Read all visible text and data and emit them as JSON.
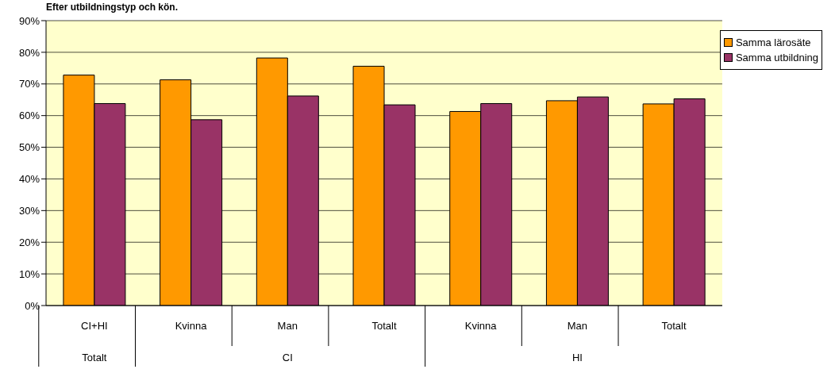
{
  "chart_data": {
    "type": "bar",
    "title": "Efter utbildningstyp och kön.",
    "categories": [
      "CI+HI",
      "Kvinna",
      "Man",
      "Totalt",
      "Kvinna",
      "Man",
      "Totalt"
    ],
    "series": [
      {
        "name": "Samma lärosäte",
        "color": "#ff9900",
        "values": [
          72.8,
          71.3,
          78.2,
          75.6,
          61.3,
          64.7,
          63.7
        ]
      },
      {
        "name": "Samma utbildning",
        "color": "#993366",
        "values": [
          63.8,
          58.7,
          66.2,
          63.4,
          63.8,
          65.9,
          65.3
        ]
      }
    ],
    "ylim": [
      0,
      90
    ],
    "yticks": [
      {
        "value": 0,
        "label": "0%"
      },
      {
        "value": 10,
        "label": "10%"
      },
      {
        "value": 20,
        "label": "20%"
      },
      {
        "value": 30,
        "label": "30%"
      },
      {
        "value": 40,
        "label": "40%"
      },
      {
        "value": 50,
        "label": "50%"
      },
      {
        "value": 60,
        "label": "60%"
      },
      {
        "value": 70,
        "label": "70%"
      },
      {
        "value": 80,
        "label": "80%"
      },
      {
        "value": 90,
        "label": "90%"
      }
    ],
    "grid": "y",
    "legend": "top right",
    "annotations": [
      "Totalt",
      "CI",
      "HI"
    ]
  }
}
